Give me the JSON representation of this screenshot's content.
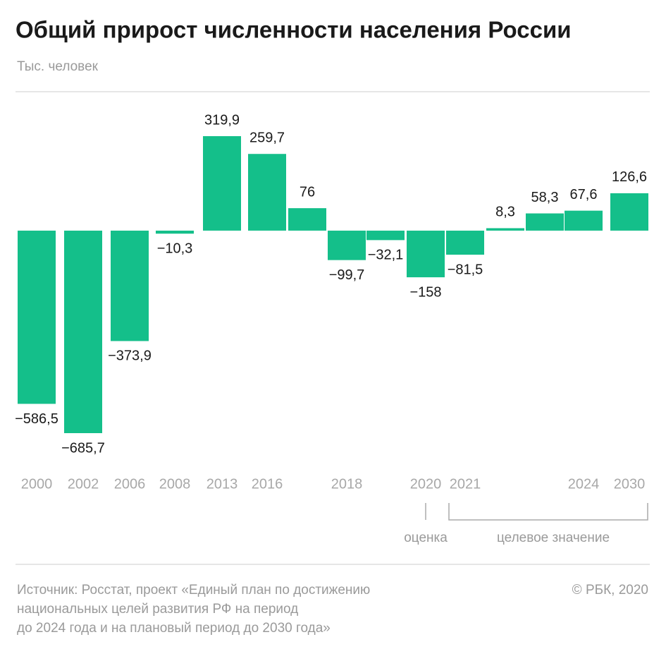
{
  "chart_data": {
    "type": "bar",
    "title": "Общий прирост численности населения России",
    "subtitle": "Тыс. человек",
    "categories": [
      "2000",
      "2002",
      "2006",
      "2008",
      "2013",
      "2016",
      null,
      "2018",
      null,
      "2020",
      "2021",
      null,
      null,
      "2024",
      "2030"
    ],
    "values": [
      -586.5,
      -685.7,
      -373.9,
      -10.3,
      319.9,
      259.7,
      76,
      -99.7,
      -32.1,
      -158,
      -81.5,
      8.3,
      58.3,
      67.6,
      126.6
    ],
    "value_labels": [
      "−586,5",
      "−685,7",
      "−373,9",
      "−10,3",
      "319,9",
      "259,7",
      "76",
      "−99,7",
      "−32,1",
      "−158",
      "−81,5",
      "8,3",
      "58,3",
      "67,6",
      "126,6"
    ],
    "color": "#14bf8a",
    "annotations": [
      "оценка",
      "целевое значение"
    ],
    "source": [
      "Источник: Росстат, проект «Единый план по достижению",
      "национальных целей развития РФ на период",
      "до 2024 года и на плановый период до 2030 года»"
    ],
    "copyright": "© РБК, 2020"
  }
}
